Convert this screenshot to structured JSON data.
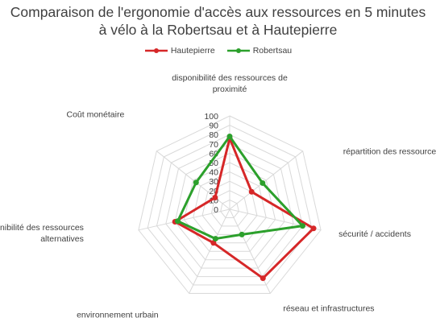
{
  "chart_data": {
    "type": "radar",
    "title_line1": "Comparaison de l'ergonomie d'accès aux ressources en 5 minutes",
    "title_line2": "à vélo à la Robertsau et à Hautepierre",
    "categories": [
      "disponibilité des ressources de proximité",
      "répartition des ressources",
      "sécurité / accidents",
      "réseau et infrastructures",
      "environnement urbain",
      "disponibilité des ressources alternatives",
      "Coût monétaire"
    ],
    "category_lines": [
      [
        "disponibilité des ressources de",
        "proximité"
      ],
      [
        "répartition des ressources"
      ],
      [
        "sécurité / accidents"
      ],
      [
        "réseau et infrastructures"
      ],
      [
        "environnement urbain"
      ],
      [
        "disponibilité des ressources",
        "alternatives"
      ],
      [
        "Coût monétaire"
      ]
    ],
    "rlim": [
      0,
      100
    ],
    "ticks": [
      0,
      10,
      20,
      30,
      40,
      50,
      60,
      70,
      80,
      90,
      100
    ],
    "grid": true,
    "legend_position": "top",
    "series": [
      {
        "name": "Hautepierre",
        "color": "#d62728",
        "values": [
          76,
          30,
          92,
          82,
          40,
          60,
          20
        ]
      },
      {
        "name": "Robertsau",
        "color": "#2ca02c",
        "values": [
          78,
          45,
          80,
          30,
          35,
          57,
          46
        ]
      }
    ]
  }
}
